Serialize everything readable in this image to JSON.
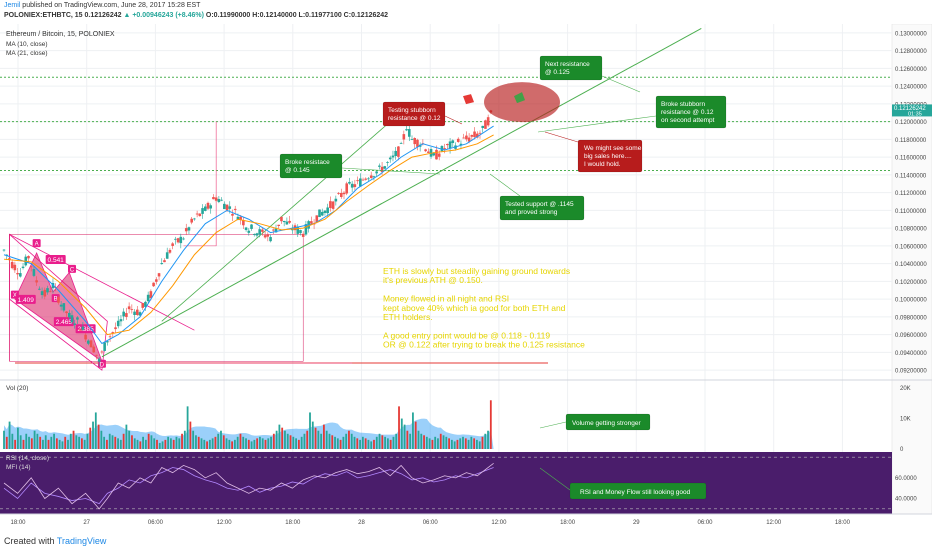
{
  "header": {
    "user": "Jemil",
    "published": "published on TradingView.com, June 28, 2017 15:28 EST",
    "symbol_line": "POLONIEX:ETHBTC, 15  0.12126242",
    "change": "▲ +0.00946243 (+8.46%)",
    "ohlc": "O:0.11990000 H:0.12140000 L:0.11977100 C:0.12126242"
  },
  "chart_data": {
    "type": "line",
    "title": "Ethereum / Bitcoin, 15, POLONIEX",
    "indicators": [
      "MA (10, close)",
      "MA (21, close)"
    ],
    "price_axis": {
      "ticks": [
        "0.13000000",
        "0.12800000",
        "0.12600000",
        "0.12400000",
        "0.12200000",
        "0.12000000",
        "0.11800000",
        "0.11600000",
        "0.11400000",
        "0.11200000",
        "0.11000000",
        "0.10800000",
        "0.10600000",
        "0.10400000",
        "0.10200000",
        "0.10000000",
        "0.09800000",
        "0.09600000",
        "0.09400000",
        "0.09200000"
      ],
      "last_price": "0.12126242",
      "countdown": "01:35",
      "ylim": [
        0.091,
        0.131
      ]
    },
    "time_axis": [
      "18:00",
      "27",
      "06:00",
      "12:00",
      "18:00",
      "28",
      "06:00",
      "12:00",
      "18:00",
      "29",
      "06:00",
      "12:00",
      "18:00"
    ],
    "price_series": [
      [
        0,
        0.1055
      ],
      [
        3,
        0.104
      ],
      [
        6,
        0.103
      ],
      [
        9,
        0.1048
      ],
      [
        12,
        0.102
      ],
      [
        15,
        0.1005
      ],
      [
        18,
        0.1015
      ],
      [
        21,
        0.0995
      ],
      [
        24,
        0.098
      ],
      [
        27,
        0.0975
      ],
      [
        30,
        0.096
      ],
      [
        33,
        0.0945
      ],
      [
        35,
        0.093
      ],
      [
        38,
        0.0955
      ],
      [
        42,
        0.097
      ],
      [
        46,
        0.099
      ],
      [
        50,
        0.0985
      ],
      [
        54,
        0.1005
      ],
      [
        58,
        0.104
      ],
      [
        62,
        0.106
      ],
      [
        66,
        0.107
      ],
      [
        70,
        0.109
      ],
      [
        74,
        0.11
      ],
      [
        78,
        0.1115
      ],
      [
        82,
        0.1105
      ],
      [
        86,
        0.1095
      ],
      [
        90,
        0.108
      ],
      [
        94,
        0.1075
      ],
      [
        98,
        0.107
      ],
      [
        102,
        0.109
      ],
      [
        106,
        0.108
      ],
      [
        110,
        0.1075
      ],
      [
        114,
        0.109
      ],
      [
        118,
        0.11
      ],
      [
        122,
        0.111
      ],
      [
        126,
        0.1125
      ],
      [
        130,
        0.113
      ],
      [
        134,
        0.114
      ],
      [
        138,
        0.1145
      ],
      [
        142,
        0.1155
      ],
      [
        146,
        0.117
      ],
      [
        148,
        0.1195
      ],
      [
        150,
        0.118
      ],
      [
        154,
        0.1175
      ],
      [
        158,
        0.116
      ],
      [
        162,
        0.117
      ],
      [
        166,
        0.1175
      ],
      [
        170,
        0.118
      ],
      [
        174,
        0.1185
      ],
      [
        176,
        0.119
      ],
      [
        180,
        0.1213
      ]
    ],
    "ma10": [
      [
        0,
        0.105
      ],
      [
        10,
        0.104
      ],
      [
        20,
        0.101
      ],
      [
        30,
        0.0975
      ],
      [
        36,
        0.095
      ],
      [
        42,
        0.096
      ],
      [
        50,
        0.098
      ],
      [
        58,
        0.102
      ],
      [
        66,
        0.1055
      ],
      [
        74,
        0.1085
      ],
      [
        82,
        0.11
      ],
      [
        90,
        0.109
      ],
      [
        98,
        0.1075
      ],
      [
        106,
        0.108
      ],
      [
        114,
        0.1085
      ],
      [
        122,
        0.11
      ],
      [
        130,
        0.1125
      ],
      [
        138,
        0.114
      ],
      [
        146,
        0.116
      ],
      [
        154,
        0.1175
      ],
      [
        162,
        0.1168
      ],
      [
        170,
        0.1175
      ],
      [
        180,
        0.1195
      ]
    ],
    "ma21": [
      [
        0,
        0.1045
      ],
      [
        10,
        0.1042
      ],
      [
        20,
        0.102
      ],
      [
        30,
        0.099
      ],
      [
        38,
        0.096
      ],
      [
        46,
        0.0965
      ],
      [
        54,
        0.0985
      ],
      [
        62,
        0.1015
      ],
      [
        70,
        0.105
      ],
      [
        78,
        0.1075
      ],
      [
        86,
        0.109
      ],
      [
        94,
        0.1085
      ],
      [
        102,
        0.1078
      ],
      [
        110,
        0.108
      ],
      [
        118,
        0.109
      ],
      [
        126,
        0.111
      ],
      [
        134,
        0.1128
      ],
      [
        142,
        0.1145
      ],
      [
        150,
        0.116
      ],
      [
        158,
        0.1165
      ],
      [
        166,
        0.1168
      ],
      [
        174,
        0.1175
      ],
      [
        180,
        0.1185
      ]
    ],
    "horizontal_levels": [
      {
        "value": 0.125,
        "color": "#4caf50"
      },
      {
        "value": 0.12,
        "color": "#4caf50"
      },
      {
        "value": 0.1145,
        "color": "#4caf50"
      }
    ],
    "pattern_labels": [
      "A",
      "X",
      "B",
      "C",
      "D"
    ],
    "pattern_ratios": [
      "0.541",
      "1.409",
      "2.465",
      "2.385"
    ],
    "volume": {
      "title": "Vol (20)",
      "ticks": [
        "20K",
        "10K",
        "0"
      ],
      "ylim": [
        0,
        22000
      ],
      "values": [
        6000,
        4000,
        9000,
        5000,
        3000,
        7000,
        4500,
        3000,
        5000,
        4000,
        3500,
        6000,
        5000,
        4000,
        3000,
        4500,
        3000,
        4000,
        5000,
        3500,
        3000,
        2500,
        4000,
        3000,
        5000,
        6000,
        4500,
        4000,
        3500,
        3000,
        5000,
        7000,
        9000,
        12000,
        8000,
        6000,
        4000,
        3000,
        5000,
        4500,
        4000,
        3500,
        3000,
        5000,
        8000,
        6000,
        4500,
        3500,
        3000,
        2500,
        4000,
        3000,
        5000,
        4500,
        3500,
        3000,
        2000,
        2500,
        3000,
        4000,
        3500,
        3000,
        4000,
        3500,
        5000,
        6000,
        14000,
        9000,
        6000,
        4500,
        4000,
        3500,
        3000,
        2500,
        3000,
        3500,
        4000,
        5000,
        6000,
        4500,
        3500,
        3000,
        2500,
        3000,
        4000,
        5000,
        4000,
        3500,
        3000,
        2500,
        3000,
        3500,
        4000,
        3500,
        3000,
        3500,
        4000,
        5000,
        6000,
        8000,
        7000,
        6000,
        5000,
        4500,
        4000,
        3500,
        3000,
        4000,
        5000,
        6000,
        12000,
        9000,
        7000,
        6000,
        5000,
        8000,
        6000,
        5000,
        4500,
        4000,
        3500,
        3000,
        4000,
        5000,
        6000,
        5000,
        4000,
        3500,
        3000,
        4000,
        3500,
        3000,
        2500,
        3000,
        4000,
        5000,
        4500,
        4000,
        3500,
        3000,
        4000,
        5000,
        14000,
        10000,
        8000,
        6000,
        5000,
        12000,
        9000,
        6000,
        5000,
        4500,
        4000,
        3500,
        3000,
        4000,
        3500,
        5000,
        4500,
        4000,
        3500,
        3000,
        2500,
        3000,
        3500,
        4000,
        3500,
        3000,
        4000,
        3500,
        3000,
        2500,
        4000,
        5000,
        6000,
        16000
      ]
    },
    "rsi": {
      "title": "RSI (14, close)",
      "mfi_title": "MFI (14)",
      "ticks": [
        "60.0000",
        "40.0000"
      ],
      "ylim": [
        25,
        85
      ],
      "rsi_values": [
        [
          0,
          55
        ],
        [
          5,
          45
        ],
        [
          10,
          60
        ],
        [
          15,
          40
        ],
        [
          20,
          50
        ],
        [
          25,
          35
        ],
        [
          30,
          45
        ],
        [
          35,
          30
        ],
        [
          38,
          40
        ],
        [
          42,
          55
        ],
        [
          46,
          50
        ],
        [
          50,
          60
        ],
        [
          54,
          55
        ],
        [
          58,
          70
        ],
        [
          62,
          65
        ],
        [
          66,
          72
        ],
        [
          70,
          68
        ],
        [
          74,
          60
        ],
        [
          78,
          65
        ],
        [
          82,
          55
        ],
        [
          86,
          50
        ],
        [
          90,
          45
        ],
        [
          94,
          50
        ],
        [
          98,
          48
        ],
        [
          102,
          55
        ],
        [
          106,
          50
        ],
        [
          110,
          58
        ],
        [
          114,
          62
        ],
        [
          118,
          60
        ],
        [
          122,
          65
        ],
        [
          126,
          68
        ],
        [
          130,
          64
        ],
        [
          134,
          66
        ],
        [
          138,
          70
        ],
        [
          142,
          62
        ],
        [
          146,
          72
        ],
        [
          150,
          60
        ],
        [
          154,
          55
        ],
        [
          158,
          58
        ],
        [
          162,
          62
        ],
        [
          166,
          60
        ],
        [
          170,
          65
        ],
        [
          174,
          62
        ],
        [
          180,
          74
        ]
      ],
      "mfi_values": [
        [
          0,
          50
        ],
        [
          5,
          40
        ],
        [
          10,
          55
        ],
        [
          15,
          45
        ],
        [
          20,
          42
        ],
        [
          25,
          38
        ],
        [
          30,
          40
        ],
        [
          35,
          35
        ],
        [
          38,
          45
        ],
        [
          42,
          50
        ],
        [
          46,
          58
        ],
        [
          50,
          55
        ],
        [
          54,
          62
        ],
        [
          58,
          65
        ],
        [
          62,
          70
        ],
        [
          66,
          68
        ],
        [
          70,
          62
        ],
        [
          74,
          58
        ],
        [
          78,
          55
        ],
        [
          82,
          50
        ],
        [
          86,
          48
        ],
        [
          90,
          52
        ],
        [
          94,
          46
        ],
        [
          98,
          50
        ],
        [
          102,
          52
        ],
        [
          106,
          56
        ],
        [
          110,
          54
        ],
        [
          114,
          60
        ],
        [
          118,
          64
        ],
        [
          122,
          62
        ],
        [
          126,
          66
        ],
        [
          130,
          60
        ],
        [
          134,
          62
        ],
        [
          138,
          65
        ],
        [
          142,
          68
        ],
        [
          146,
          64
        ],
        [
          150,
          58
        ],
        [
          154,
          60
        ],
        [
          158,
          56
        ],
        [
          162,
          58
        ],
        [
          166,
          62
        ],
        [
          170,
          60
        ],
        [
          174,
          64
        ],
        [
          180,
          70
        ]
      ]
    }
  },
  "annotations": {
    "next_resistance": "Next  resistance\n@ 0.125",
    "testing_resistance": "Testing  stubborn\nresistance @ 0.12",
    "broke_stubborn": "Broke  stubborn\nresistance @ 0.12\non second attempt",
    "broke_0145": "Broke resistace\n@ 0.145",
    "big_sales": "We might see some\nbig sales here....\nI would hold.",
    "tested_support": "Tested support @ .1145\nand proved strong",
    "volume_stronger": "Volume getting stronger",
    "rsi_good": "RSI and Money Flow still looking good",
    "analysis": "ETH is slowly but steadily gaining ground towards\nit's previous ATH @ 0.150.\n\nMoney flowed in all night and RSI\nkept above 40% which ia good for both ETH and\nETH holders.\n\nA good entry point would be @ 0.118 - 0.119\nOR @ 0.122 after trying to break the 0.125 resistance"
  },
  "colors": {
    "up": "#26a69a",
    "down": "#ef5350",
    "ma10": "#2196f3",
    "ma21": "#ff9800",
    "green_box": "#1b8a2a",
    "red_box": "#b71c1c",
    "pattern": "#e91e8c",
    "rsi_bg": "#4a1d6b",
    "analysis_text": "#e6d500"
  },
  "footer": {
    "created_with": "Created with",
    "brand": "TradingView"
  }
}
